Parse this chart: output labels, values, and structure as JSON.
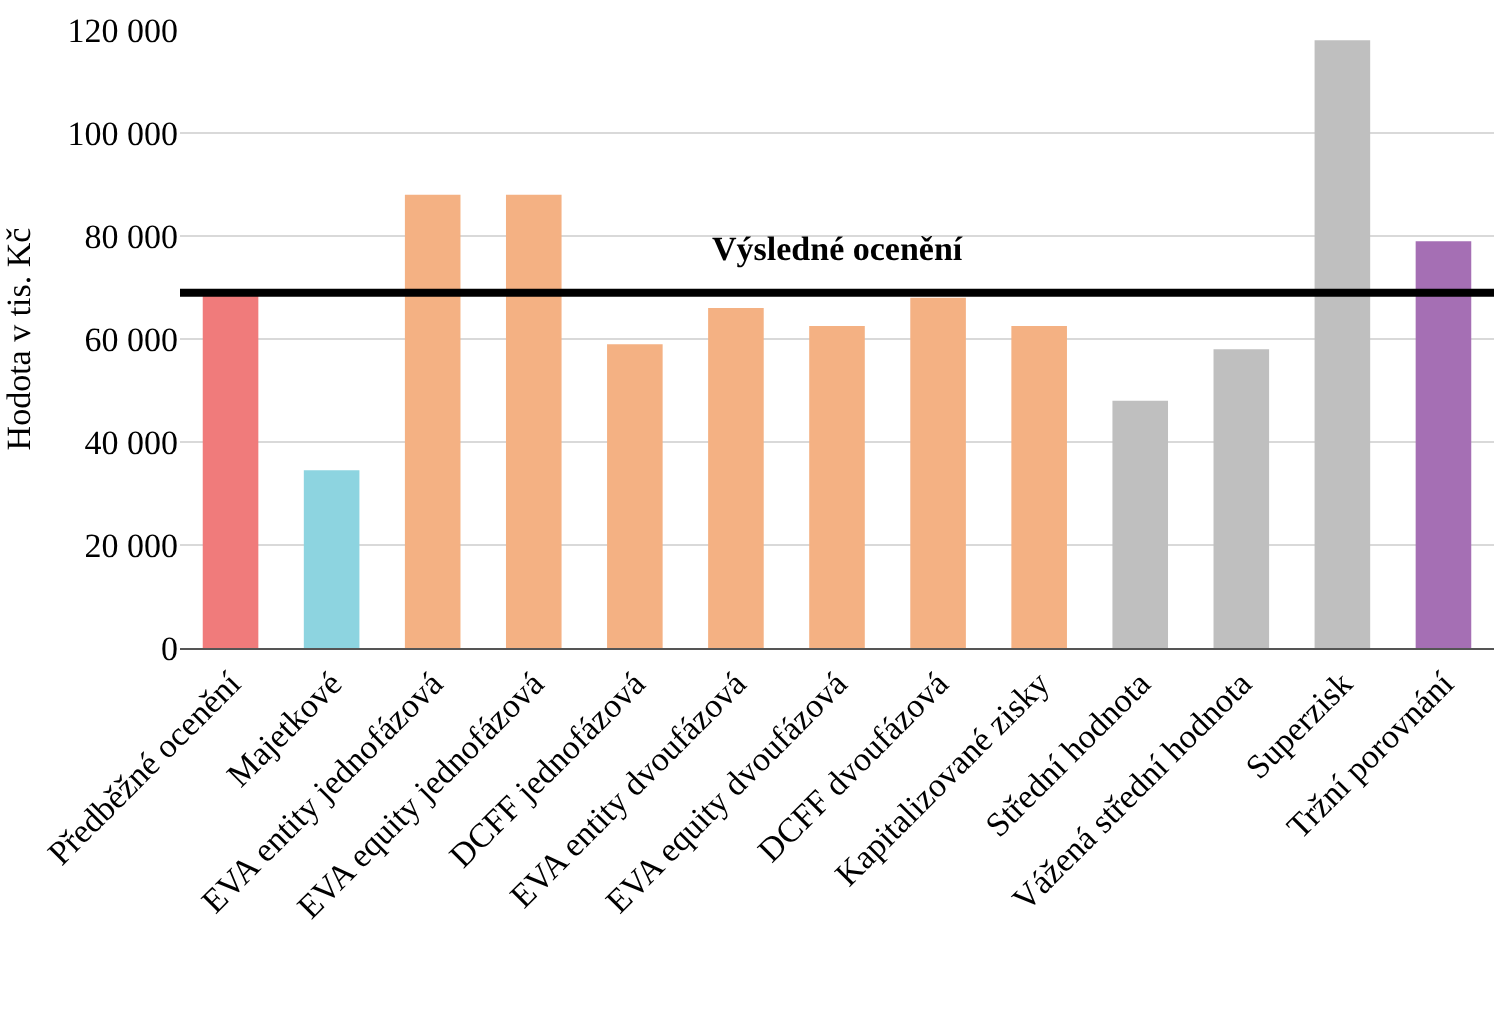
{
  "chart_data": {
    "type": "bar",
    "ylabel": "Hodota v tis. Kč",
    "categories": [
      "Předběžné ocenění",
      "Majetkové",
      "EVA entity jednofázová",
      "EVA equity jednofázová",
      "DCFF jednofázová",
      "EVA entity dvoufázová",
      "EVA equity dvoufázová",
      "DCFF dvoufázová",
      "Kapitalizované zisky",
      "Střední hodnota",
      "Vážená střední hodnota",
      "Superzisk",
      "Tržní porovnání"
    ],
    "values": [
      68500,
      34500,
      88000,
      88000,
      59000,
      66000,
      62500,
      68000,
      62500,
      48000,
      58000,
      118000,
      79000
    ],
    "colors": [
      "#f07b7b",
      "#8dd4e0",
      "#f4b183",
      "#f4b183",
      "#f4b183",
      "#f4b183",
      "#f4b183",
      "#f4b183",
      "#f4b183",
      "#bfbfbf",
      "#bfbfbf",
      "#bfbfbf",
      "#a56fb4"
    ],
    "ylim": [
      0,
      120000
    ],
    "yticks": [
      {
        "value": 0,
        "label": "0"
      },
      {
        "value": 20000,
        "label": "20 000"
      },
      {
        "value": 40000,
        "label": "40 000"
      },
      {
        "value": 60000,
        "label": "60 000"
      },
      {
        "value": 80000,
        "label": "80 000"
      },
      {
        "value": 100000,
        "label": "100 000"
      },
      {
        "value": 120000,
        "label": "120 000"
      }
    ],
    "grid": "y",
    "ref_lines": [
      {
        "axis": "y",
        "value": 69000,
        "label": "Výsledné ocenění",
        "color": "#000000"
      }
    ]
  }
}
